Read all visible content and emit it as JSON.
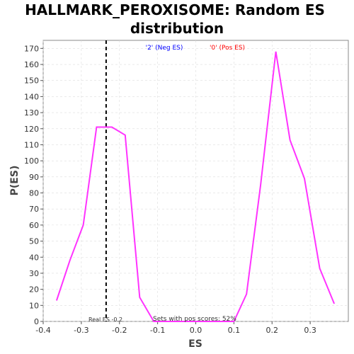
{
  "chart_data": {
    "type": "line",
    "title_line1": "HALLMARK_PEROXISOME: Random ES",
    "title_line2": "distribution",
    "xlabel": "ES",
    "ylabel": "P(ES)",
    "xlim": [
      -0.4,
      0.4
    ],
    "ylim": [
      0,
      175
    ],
    "x_ticks": [
      -0.4,
      -0.3,
      -0.2,
      -0.1,
      0.0,
      0.1,
      0.2,
      0.3
    ],
    "x_tick_labels": [
      "-0.4",
      "-0.3",
      "-0.2",
      "-0.1",
      "0.0",
      "0.1",
      "0.2",
      "0.3"
    ],
    "y_ticks": [
      0,
      10,
      20,
      30,
      40,
      50,
      60,
      70,
      80,
      90,
      100,
      110,
      120,
      130,
      140,
      150,
      160,
      170
    ],
    "grid": true,
    "series": [
      {
        "color": "#ff33ff",
        "x": [
          -0.365,
          -0.33,
          -0.295,
          -0.26,
          -0.22,
          -0.185,
          -0.147,
          -0.11,
          0.1,
          0.133,
          0.17,
          0.21,
          0.247,
          0.285,
          0.325,
          0.363
        ],
        "y": [
          13,
          38,
          60,
          121,
          121,
          116,
          15,
          0,
          0,
          17,
          85,
          168,
          113,
          89,
          33,
          11
        ]
      }
    ],
    "real_es": {
      "x": -0.235,
      "label": "Real ES -0.2"
    },
    "legend": [
      {
        "label": "'2' (Neg ES)",
        "color": "#0000ff"
      },
      {
        "label": "'0' (Pos ES)",
        "color": "#ff0000"
      }
    ],
    "annotation": "Sets with pos scores: 52%"
  }
}
